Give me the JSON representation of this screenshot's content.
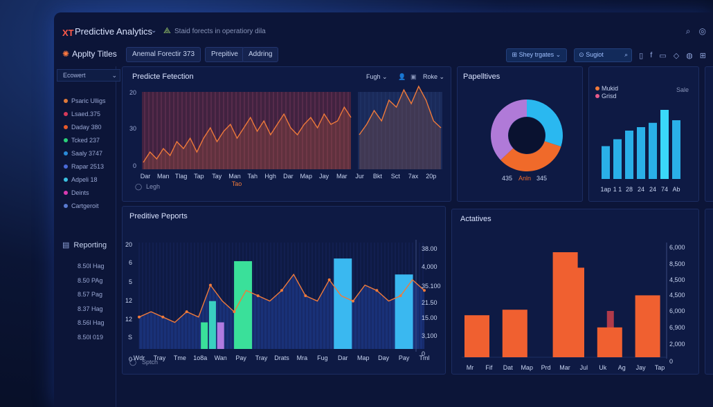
{
  "header": {
    "logo": "XT",
    "app_title": "Predictive Analytics",
    "tagline": "Staid forects in operatiory dila"
  },
  "toolbar": {
    "section_title": "Applty Titles",
    "tabs": [
      "Anemal Forectir 373",
      "Prepitive",
      "Addring"
    ],
    "filter_label": "Shey trgates",
    "search_placeholder": "Sugiot"
  },
  "sidebar": {
    "dropdown": "Ecowert",
    "items": [
      {
        "label": "Psaric Ulligs",
        "color": "#e07a3a"
      },
      {
        "label": "Lsaed.375",
        "color": "#d83a5a"
      },
      {
        "label": "Daday 380",
        "color": "#e85a2a"
      },
      {
        "label": "Tcked 237",
        "color": "#2ad07a"
      },
      {
        "label": "Saaly 3747",
        "color": "#2a8ad8"
      },
      {
        "label": "Rapar 2513",
        "color": "#4a6ad8"
      },
      {
        "label": "Adpeli 18",
        "color": "#3ac0e0"
      },
      {
        "label": "Deints",
        "color": "#d83ab0"
      },
      {
        "label": "Cartgeroit",
        "color": "#5a7ad0"
      }
    ],
    "reporting_label": "Reporting",
    "values": [
      "8.50l Hag",
      "8.50 PAg",
      "8.57 Pag",
      "8.37 Hag",
      "8.56l Hag",
      "8.50l 019"
    ]
  },
  "panel1": {
    "title": "Predicte Fetection",
    "controls": [
      "Fugh",
      "Roke"
    ],
    "y_ticks": [
      "20",
      "30",
      "0"
    ],
    "x_labels": [
      "Dar",
      "Man",
      "Tlag",
      "Tap",
      "Tay",
      "Man",
      "Tah",
      "Hgh",
      "Dar",
      "Map",
      "Jay",
      "Mar",
      "Jur",
      "Bkt",
      "Sct",
      "7ax",
      "20p"
    ],
    "x_sub": "Tao",
    "legend": "Legh",
    "chart_data": {
      "type": "line",
      "series": [
        {
          "values": [
            2,
            5,
            3,
            6,
            4,
            8,
            6,
            9,
            5,
            9,
            12,
            8,
            11,
            13,
            9,
            12,
            15,
            11,
            14,
            10,
            13,
            16,
            12,
            10,
            13,
            15,
            12,
            16,
            13,
            14,
            18,
            15
          ]
        },
        {
          "values": [
            10,
            13,
            17,
            14,
            20,
            18,
            23,
            19,
            24,
            20,
            14,
            12
          ]
        }
      ]
    }
  },
  "panel2": {
    "title": "Papelltives",
    "labels": [
      "435",
      "Anln",
      "345"
    ],
    "chart_data": {
      "type": "pie",
      "slices": [
        {
          "value": 30,
          "color": "#2ab8f0"
        },
        {
          "value": 33,
          "color": "#f06a2a"
        },
        {
          "value": 37,
          "color": "#b07ad8"
        }
      ]
    }
  },
  "panel3": {
    "legend": [
      {
        "label": "Mukid",
        "color": "#f07a3a"
      },
      {
        "label": "Grisd",
        "color": "#e85a8a"
      }
    ],
    "side_label": "Sale",
    "x_labels": [
      "1ap",
      "1 1",
      "28",
      "24",
      "24",
      "74",
      "Ab"
    ],
    "chart_data": {
      "type": "bar",
      "values": [
        38,
        46,
        56,
        60,
        65,
        80,
        68
      ]
    }
  },
  "panel4": {
    "title": "Preditive Peports",
    "y_left": [
      "20",
      "6",
      "5",
      "12",
      "12",
      "S",
      "0"
    ],
    "y_right": [
      "38.00",
      "4,000",
      "35.100",
      "21.50",
      "15.00",
      "3,100",
      "0"
    ],
    "x_labels": [
      "Wdr",
      "Tray",
      "Tme",
      "1o8a",
      "Wan",
      "Pay",
      "Tray",
      "Drats",
      "Mra",
      "Fug",
      "Dar",
      "Map",
      "Day",
      "Pay",
      "Tml"
    ],
    "legend": "Sptch",
    "chart_data": {
      "type": "bar",
      "bars": [
        {
          "x": 3.2,
          "value": 5,
          "color": "#3ae09a"
        },
        {
          "x": 3.6,
          "value": 9,
          "color": "#3ad0c0"
        },
        {
          "x": 4.0,
          "value": 5,
          "color": "#b07ae0"
        },
        {
          "x": 5.1,
          "value": 16.5,
          "color": "#3ae09a"
        },
        {
          "x": 10.0,
          "value": 17,
          "color": "#3ab8f0"
        },
        {
          "x": 13.0,
          "value": 14,
          "color": "#3ab8f0"
        }
      ],
      "line": [
        6,
        7,
        6,
        5,
        7,
        6,
        12,
        9,
        7,
        11,
        10,
        9,
        11,
        14,
        10,
        9,
        13,
        10,
        9,
        12,
        11,
        9,
        10,
        13,
        11
      ],
      "ylim": [
        0,
        20
      ]
    }
  },
  "panel5": {
    "title": "Actatives",
    "y_right": [
      "6,000",
      "8,500",
      "4,500",
      "4,500",
      "6,000",
      "6,900",
      "2,000",
      "0"
    ],
    "x_labels": [
      "Mr",
      "Fif",
      "Dat",
      "Map",
      "Prd",
      "Mar",
      "Jul",
      "Uk",
      "Ag",
      "Jay",
      "Tap"
    ],
    "chart_data": {
      "type": "bar",
      "values": [
        3800,
        0,
        4300,
        0,
        9500,
        8100,
        0,
        2700,
        0,
        5600,
        0
      ],
      "ylim": [
        0,
        10000
      ]
    }
  }
}
